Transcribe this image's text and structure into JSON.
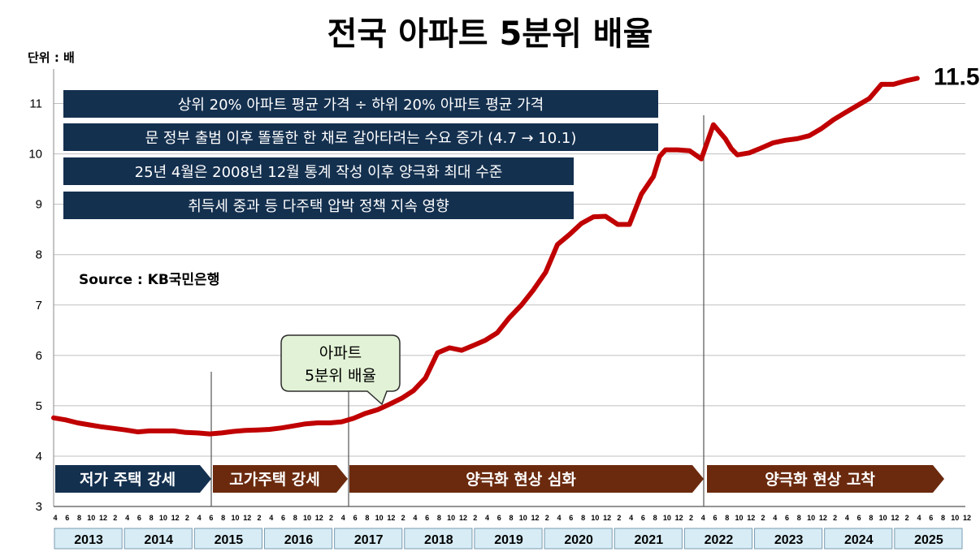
{
  "chart_data": {
    "type": "line",
    "title": "전국 아파트 5분위 배율",
    "unit_label": "단위 : 배",
    "source": "Source  : KB국민은행",
    "ylim": [
      3,
      11.5
    ],
    "yticks": [
      "3",
      "4",
      "5",
      "6",
      "7",
      "8",
      "9",
      "10",
      "11"
    ],
    "grid": true,
    "end_value_label": "11.5",
    "callout": [
      "아파트",
      "5분위 배율"
    ],
    "notes": [
      "상위 20% 아파트 평균 가격 ÷ 하위 20% 아파트 평균 가격",
      "문 정부 출범 이후 똘똘한 한 채로 갈아타려는 수요 증가 (4.7 → 10.1)",
      "25년 4월은 2008년 12월 통계 작성 이후 양극화 최대 수준",
      "취득세 중과 등 다주택 압박 정책 지속 영향"
    ],
    "phases": [
      {
        "label": "저가 주택 강세",
        "color": "#14304f"
      },
      {
        "label": "고가주택 강세",
        "color": "#6b2a0e"
      },
      {
        "label": "양극화 현상 심화",
        "color": "#6b2a0e"
      },
      {
        "label": "양극화 현상 고착",
        "color": "#6b2a0e"
      }
    ],
    "month_ticks": [
      "4",
      "6",
      "8",
      "10",
      "12",
      "2",
      "4",
      "6",
      "8",
      "10",
      "12",
      "2",
      "4",
      "6",
      "8",
      "10",
      "12",
      "2",
      "4",
      "6",
      "8",
      "10",
      "12",
      "2",
      "4",
      "6",
      "8",
      "10",
      "12",
      "2",
      "4",
      "6",
      "8",
      "10",
      "12",
      "2",
      "4",
      "6",
      "8",
      "10",
      "12",
      "2",
      "4",
      "6",
      "8",
      "10",
      "12",
      "2",
      "4",
      "6",
      "8",
      "10",
      "12",
      "2",
      "4",
      "6",
      "8",
      "10",
      "12",
      "2",
      "4",
      "6",
      "8",
      "10",
      "12",
      "2",
      "4",
      "6",
      "8",
      "10",
      "12",
      "2",
      "4",
      "6",
      "8",
      "10",
      "12"
    ],
    "year_labels": [
      "2013",
      "2014",
      "2015",
      "2016",
      "2017",
      "2018",
      "2019",
      "2020",
      "2021",
      "2022",
      "2023",
      "2024",
      "2025"
    ],
    "series": [
      {
        "color": "#c00000",
        "x": [
          "2013.04",
          "2013.06",
          "2013.08",
          "2013.10",
          "2013.12",
          "2014.02",
          "2014.04",
          "2014.06",
          "2014.08",
          "2014.10",
          "2014.12",
          "2015.02",
          "2015.04",
          "2015.06",
          "2015.08",
          "2015.10",
          "2015.12",
          "2016.02",
          "2016.04",
          "2016.06",
          "2016.08",
          "2016.10",
          "2016.12",
          "2017.02",
          "2017.04",
          "2017.06",
          "2017.08",
          "2017.10",
          "2017.12",
          "2018.02",
          "2018.04",
          "2018.06",
          "2018.08",
          "2018.10",
          "2018.12",
          "2019.02",
          "2019.04",
          "2019.06",
          "2019.08",
          "2019.10",
          "2019.12",
          "2020.02",
          "2020.04",
          "2020.06",
          "2020.08",
          "2020.10",
          "2020.12",
          "2021.02",
          "2021.04",
          "2021.06",
          "2021.08",
          "2021.09",
          "2021.10",
          "2021.12",
          "2022.02",
          "2022.04",
          "2022.06",
          "2022.08",
          "2022.09",
          "2022.10",
          "2022.12",
          "2023.02",
          "2023.04",
          "2023.06",
          "2023.08",
          "2023.10",
          "2023.12",
          "2024.02",
          "2024.04",
          "2024.06",
          "2024.08",
          "2024.10",
          "2024.12",
          "2025.02",
          "2025.04"
        ],
        "values": [
          4.76,
          4.72,
          4.66,
          4.62,
          4.58,
          4.55,
          4.52,
          4.48,
          4.5,
          4.5,
          4.5,
          4.47,
          4.46,
          4.44,
          4.46,
          4.49,
          4.51,
          4.52,
          4.53,
          4.56,
          4.6,
          4.64,
          4.66,
          4.66,
          4.68,
          4.75,
          4.85,
          4.92,
          5.03,
          5.15,
          5.3,
          5.55,
          6.05,
          6.15,
          6.1,
          6.2,
          6.3,
          6.45,
          6.75,
          7.0,
          7.3,
          7.65,
          8.2,
          8.4,
          8.62,
          8.75,
          8.76,
          8.6,
          8.6,
          9.2,
          9.55,
          9.95,
          10.08,
          10.08,
          10.06,
          9.9,
          10.58,
          10.3,
          10.1,
          9.98,
          10.02,
          10.12,
          10.22,
          10.27,
          10.3,
          10.36,
          10.5,
          10.68,
          10.82,
          10.96,
          11.1,
          11.38,
          11.38,
          11.45,
          11.5
        ]
      }
    ]
  }
}
